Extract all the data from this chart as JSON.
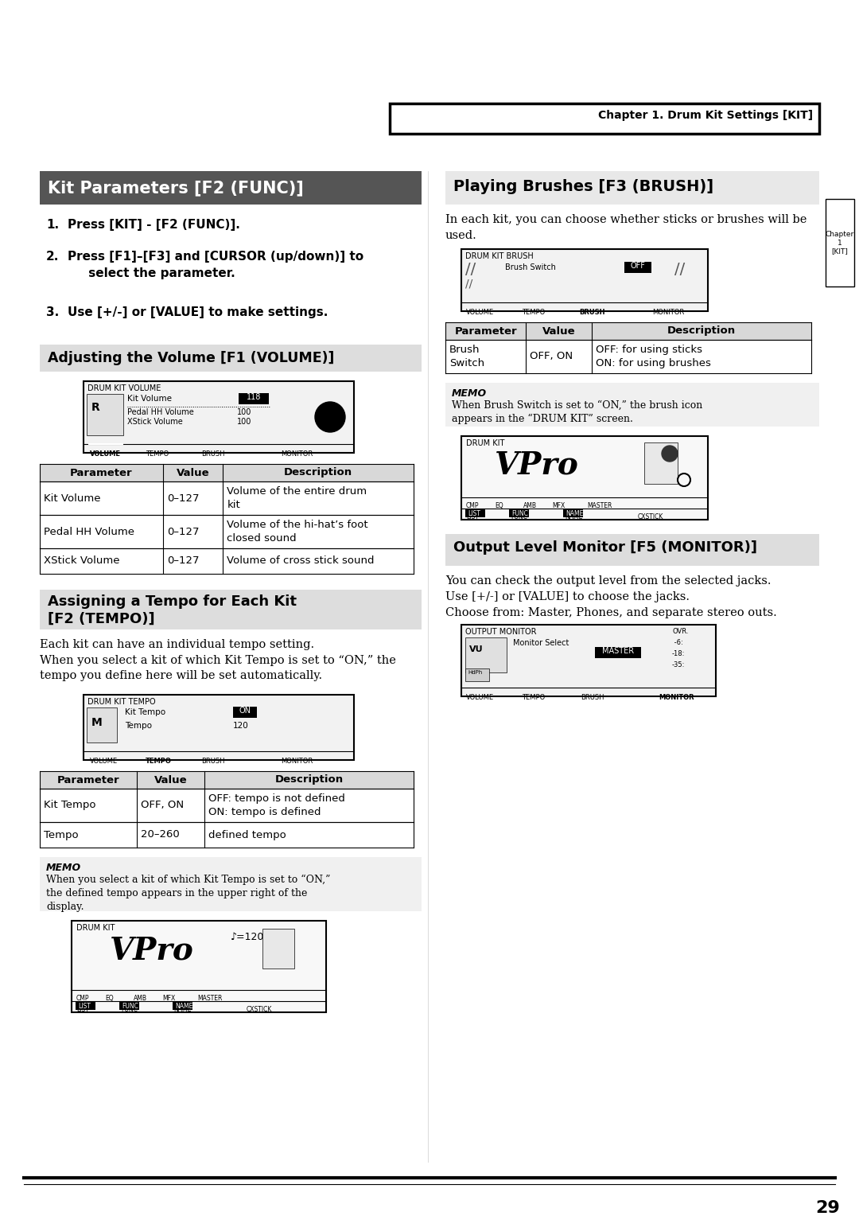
{
  "page_bg": "#ffffff",
  "chapter_header": "Chapter 1. Drum Kit Settings [KIT]",
  "left_title": "Kit Parameters [F2 (FUNC)]",
  "left_title_bg": "#555555",
  "left_title_color": "#ffffff",
  "vol_section_title": "Adjusting the Volume [F1 (VOLUME)]",
  "vol_section_bg": "#dddddd",
  "vol_table_headers": [
    "Parameter",
    "Value",
    "Description"
  ],
  "vol_table_rows": [
    [
      "Kit Volume",
      "0–127",
      "Volume of the entire drum\nkit"
    ],
    [
      "Pedal HH Volume",
      "0–127",
      "Volume of the hi-hat’s foot\nclosed sound"
    ],
    [
      "XStick Volume",
      "0–127",
      "Volume of cross stick sound"
    ]
  ],
  "tempo_section_line1": "Assigning a Tempo for Each Kit",
  "tempo_section_line2": "[F2 (TEMPO)]",
  "tempo_section_bg": "#dddddd",
  "tempo_text1": "Each kit can have an individual tempo setting.",
  "tempo_text2": "When you select a kit of which Kit Tempo is set to “ON,” the\ntempo you define here will be set automatically.",
  "tempo_table_headers": [
    "Parameter",
    "Value",
    "Description"
  ],
  "tempo_table_rows": [
    [
      "Kit Tempo",
      "OFF, ON",
      "OFF: tempo is not defined\nON: tempo is defined"
    ],
    [
      "Tempo",
      "20–260",
      "defined tempo"
    ]
  ],
  "memo_title": "MEMO",
  "memo_text": "When you select a kit of which Kit Tempo is set to “ON,”\nthe defined tempo appears in the upper right of the\ndisplay.",
  "right_title": "Playing Brushes [F3 (BRUSH)]",
  "right_section_bg": "#e8e8e8",
  "right_text": "In each kit, you can choose whether sticks or brushes will be\nused.",
  "brush_table_headers": [
    "Parameter",
    "Value",
    "Description"
  ],
  "brush_table_rows": [
    [
      "Brush\nSwitch",
      "OFF, ON",
      "OFF: for using sticks\nON: for using brushes"
    ]
  ],
  "memo2_title": "MEMO",
  "memo2_text": "When Brush Switch is set to “ON,” the brush icon\nappears in the “DRUM KIT” screen.",
  "output_title": "Output Level Monitor [F5 (MONITOR)]",
  "output_title_bg": "#dddddd",
  "output_text1": "You can check the output level from the selected jacks.",
  "output_text2": "Use [+/-] or [VALUE] to choose the jacks.",
  "output_text3": "Choose from: Master, Phones, and separate stereo outs.",
  "page_number": "29"
}
